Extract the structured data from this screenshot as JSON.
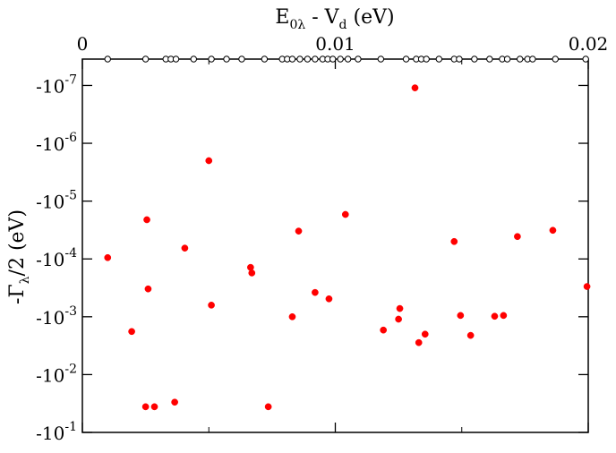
{
  "chart_data": {
    "type": "scatter",
    "xlabel": {
      "base": "E",
      "sub": "0λ",
      "rest": " - V",
      "sub2": "d",
      "unit": " (eV)"
    },
    "ylabel": {
      "pre": "-Γ",
      "sub": "λ",
      "post": "/2  (eV)"
    },
    "x_axis_position": "top",
    "xlim": [
      0,
      0.02
    ],
    "x_ticks": [
      0,
      0.01,
      0.02
    ],
    "x_tick_labels": [
      "0",
      "0.01",
      "0.02"
    ],
    "y_scale": "log",
    "y_ticks_exponent": [
      -7,
      -6,
      -5,
      -4,
      -3,
      -2,
      -1
    ],
    "y_tick_label_base": "-10",
    "ylim_magnitude": [
      3.5e-08,
      0.1
    ],
    "grid": false,
    "level_markers": {
      "style": "open-circle",
      "y_position": "top-of-plot",
      "x": [
        0.001,
        0.0025,
        0.0033,
        0.0035,
        0.0037,
        0.0044,
        0.0051,
        0.0057,
        0.0063,
        0.0072,
        0.0079,
        0.0081,
        0.0083,
        0.0086,
        0.0089,
        0.0092,
        0.0095,
        0.0097,
        0.0099,
        0.0102,
        0.0105,
        0.0109,
        0.0118,
        0.0128,
        0.0132,
        0.0134,
        0.0136,
        0.0141,
        0.0147,
        0.0149,
        0.0155,
        0.0161,
        0.0166,
        0.0168,
        0.0173,
        0.0176,
        0.0178,
        0.0187,
        0.0199
      ]
    },
    "series": [
      {
        "color": "#ff0000",
        "marker": "filled-circle",
        "points": [
          {
            "x": 0.001,
            "y": -9.5e-05
          },
          {
            "x": 0.00195,
            "y": -0.0018
          },
          {
            "x": 0.0025,
            "y": -0.036
          },
          {
            "x": 0.00255,
            "y": -2.1e-05
          },
          {
            "x": 0.0026,
            "y": -0.00033
          },
          {
            "x": 0.00285,
            "y": -0.036
          },
          {
            "x": 0.00365,
            "y": -0.03
          },
          {
            "x": 0.00405,
            "y": -6.5e-05
          },
          {
            "x": 0.005,
            "y": -2e-06
          },
          {
            "x": 0.0051,
            "y": -0.00063
          },
          {
            "x": 0.00665,
            "y": -0.00014
          },
          {
            "x": 0.0067,
            "y": -0.000175
          },
          {
            "x": 0.00735,
            "y": -0.036
          },
          {
            "x": 0.0083,
            "y": -0.001
          },
          {
            "x": 0.00855,
            "y": -3.3e-05
          },
          {
            "x": 0.0092,
            "y": -0.00038
          },
          {
            "x": 0.00975,
            "y": -0.00049
          },
          {
            "x": 0.0104,
            "y": -1.7e-05
          },
          {
            "x": 0.0119,
            "y": -0.0017
          },
          {
            "x": 0.0125,
            "y": -0.0011
          },
          {
            "x": 0.01255,
            "y": -0.00072
          },
          {
            "x": 0.01315,
            "y": -1.1e-07
          },
          {
            "x": 0.0133,
            "y": -0.0028
          },
          {
            "x": 0.01355,
            "y": -0.002
          },
          {
            "x": 0.0147,
            "y": -5e-05
          },
          {
            "x": 0.01495,
            "y": -0.00095
          },
          {
            "x": 0.01535,
            "y": -0.0021
          },
          {
            "x": 0.0163,
            "y": -0.00098
          },
          {
            "x": 0.01665,
            "y": -0.00095
          },
          {
            "x": 0.0172,
            "y": -4.1e-05
          },
          {
            "x": 0.0186,
            "y": -3.2e-05
          },
          {
            "x": 0.01995,
            "y": -0.0003
          }
        ]
      }
    ]
  }
}
